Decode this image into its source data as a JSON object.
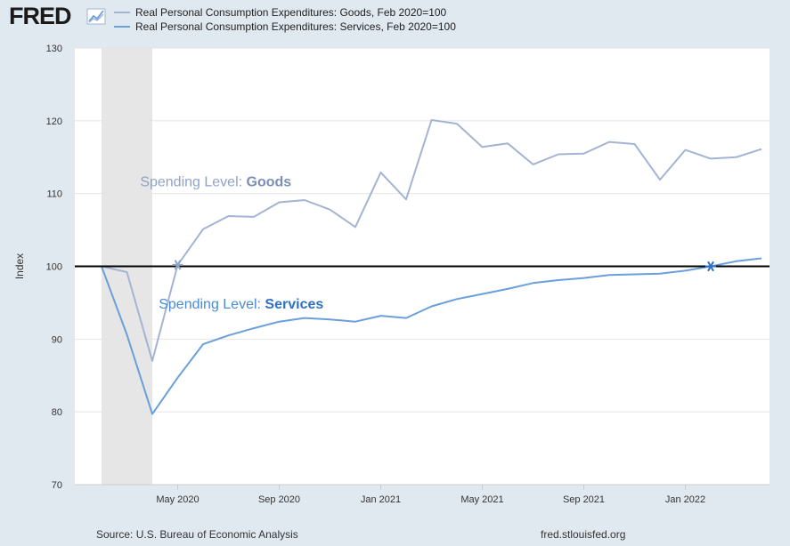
{
  "header": {
    "logo_text": "FRED",
    "legend": [
      {
        "label": "Real Personal Consumption Expenditures: Goods, Feb 2020=100",
        "color": "#a3b4d3"
      },
      {
        "label": "Real Personal Consumption Expenditures: Services, Feb 2020=100",
        "color": "#6a9fdc"
      }
    ]
  },
  "footer": {
    "source": "Source: U.S. Bureau of Economic Analysis",
    "site": "fred.stlouisfed.org"
  },
  "chart_data": {
    "type": "line",
    "ylabel": "Index",
    "ylim": [
      70,
      130
    ],
    "y_ticks": [
      70,
      80,
      90,
      100,
      110,
      120,
      130
    ],
    "x_ticks": [
      {
        "label": "May 2020",
        "month": 3
      },
      {
        "label": "Sep 2020",
        "month": 7
      },
      {
        "label": "Jan 2021",
        "month": 11
      },
      {
        "label": "May 2021",
        "month": 15
      },
      {
        "label": "Sep 2021",
        "month": 19
      },
      {
        "label": "Jan 2022",
        "month": 23
      }
    ],
    "x_months": [
      "Feb 2020",
      "Mar 2020",
      "Apr 2020",
      "May 2020",
      "Jun 2020",
      "Jul 2020",
      "Aug 2020",
      "Sep 2020",
      "Oct 2020",
      "Nov 2020",
      "Dec 2020",
      "Jan 2021",
      "Feb 2021",
      "Mar 2021",
      "Apr 2021",
      "May 2021",
      "Jun 2021",
      "Jul 2021",
      "Aug 2021",
      "Sep 2021",
      "Oct 2021",
      "Nov 2021",
      "Dec 2021",
      "Jan 2022",
      "Feb 2022",
      "Mar 2022",
      "Apr 2022"
    ],
    "series": [
      {
        "color": "#a3b4d3",
        "values": [
          100,
          99.2,
          87.0,
          100.2,
          105.1,
          106.9,
          106.8,
          108.8,
          109.1,
          107.8,
          105.4,
          112.9,
          109.2,
          120.1,
          119.6,
          116.4,
          116.9,
          114.0,
          115.4,
          115.5,
          117.1,
          116.8,
          111.9,
          116.0,
          114.8,
          115.0,
          116.1
        ]
      },
      {
        "color": "#6a9fdc",
        "values": [
          100,
          90.6,
          79.7,
          84.7,
          89.3,
          90.5,
          91.5,
          92.4,
          92.9,
          92.7,
          92.4,
          93.2,
          92.9,
          94.5,
          95.5,
          96.2,
          96.9,
          97.7,
          98.1,
          98.4,
          98.8,
          98.9,
          99.0,
          99.4,
          100.0,
          100.7,
          101.1
        ]
      }
    ],
    "recession": {
      "start_month": 0,
      "end_month": 2
    },
    "reference_line": 100,
    "markers": [
      {
        "series": 0,
        "month": 3
      },
      {
        "series": 1,
        "month": 24
      }
    ],
    "annotations": [
      {
        "prefix": "Spending Level: ",
        "bold": "Goods",
        "color": "#8fa3c6",
        "bold_color": "#7a8fb8",
        "x_month": 4.5,
        "y": 111
      },
      {
        "prefix": "Spending Level: ",
        "bold": "Services",
        "color": "#4a8ad4",
        "bold_color": "#2f72c4",
        "x_month": 5.5,
        "y": 94.2
      }
    ]
  }
}
